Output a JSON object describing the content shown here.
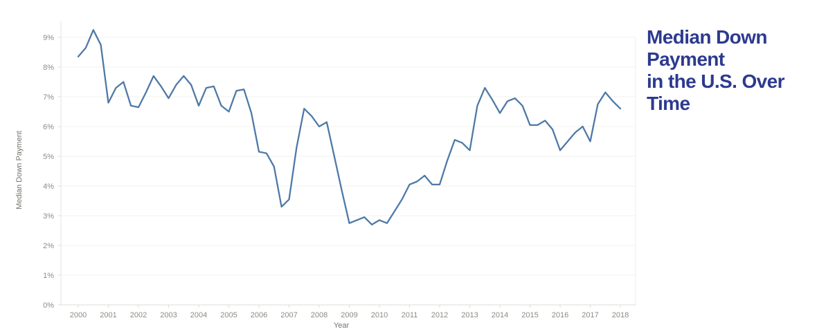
{
  "title": {
    "line1": "Median Down Payment",
    "line2": "in the U.S. Over Time"
  },
  "colors": {
    "line": "#4e79a7",
    "title_text": "#2d3a8f",
    "tick_text": "#8b8b84",
    "axis_title_text": "#73736c",
    "gridline": "#f0f0ee",
    "axis_line": "#dcdcda",
    "background": "#ffffff"
  },
  "chart_data": {
    "type": "line",
    "title": "Median Down Payment in the U.S. Over Time",
    "xlabel": "Year",
    "ylabel": "Median Down Payment",
    "legend": "none",
    "grid": "horizontal-light",
    "frequency": "quarterly",
    "xlim": [
      1999.42,
      2018.55
    ],
    "ylim": [
      0,
      9.4
    ],
    "x_tick_labels": [
      "2000",
      "2001",
      "2002",
      "2003",
      "2004",
      "2005",
      "2006",
      "2007",
      "2008",
      "2009",
      "2010",
      "2011",
      "2012",
      "2013",
      "2014",
      "2015",
      "2016",
      "2017",
      "2018"
    ],
    "y_tick_labels": [
      "0%",
      "1%",
      "2%",
      "3%",
      "4%",
      "5%",
      "6%",
      "7%",
      "8%",
      "9%"
    ],
    "y_tick_values": [
      0,
      1,
      2,
      3,
      4,
      5,
      6,
      7,
      8,
      9
    ],
    "series": [
      {
        "name": "Median Down Payment",
        "color": "#4e79a7",
        "x": [
          2000.0,
          2000.25,
          2000.5,
          2000.75,
          2001.0,
          2001.25,
          2001.5,
          2001.75,
          2002.0,
          2002.25,
          2002.5,
          2002.75,
          2003.0,
          2003.25,
          2003.5,
          2003.75,
          2004.0,
          2004.25,
          2004.5,
          2004.75,
          2005.0,
          2005.25,
          2005.5,
          2005.75,
          2006.0,
          2006.25,
          2006.5,
          2006.75,
          2007.0,
          2007.25,
          2007.5,
          2007.75,
          2008.0,
          2008.25,
          2008.5,
          2008.75,
          2009.0,
          2009.25,
          2009.5,
          2009.75,
          2010.0,
          2010.25,
          2010.5,
          2010.75,
          2011.0,
          2011.25,
          2011.5,
          2011.75,
          2012.0,
          2012.25,
          2012.5,
          2012.75,
          2013.0,
          2013.25,
          2013.5,
          2013.75,
          2014.0,
          2014.25,
          2014.5,
          2014.75,
          2015.0,
          2015.25,
          2015.5,
          2015.75,
          2016.0,
          2016.25,
          2016.5,
          2016.75,
          2017.0,
          2017.25,
          2017.5,
          2017.75,
          2018.0
        ],
        "y": [
          8.35,
          8.65,
          9.25,
          8.75,
          6.8,
          7.3,
          7.5,
          6.7,
          6.65,
          7.15,
          7.7,
          7.35,
          6.95,
          7.4,
          7.7,
          7.4,
          6.7,
          7.3,
          7.35,
          6.7,
          6.5,
          7.2,
          7.25,
          6.45,
          5.15,
          5.1,
          4.65,
          3.3,
          3.55,
          5.3,
          6.6,
          6.35,
          6.0,
          6.15,
          5.0,
          3.85,
          2.75,
          2.85,
          2.95,
          2.7,
          2.85,
          2.75,
          3.15,
          3.55,
          4.05,
          4.15,
          4.35,
          4.05,
          4.05,
          4.85,
          5.55,
          5.45,
          5.2,
          6.7,
          7.3,
          6.9,
          6.45,
          6.85,
          6.95,
          6.7,
          6.05,
          6.05,
          6.2,
          5.9,
          5.2,
          5.5,
          5.8,
          6.0,
          5.5,
          6.75,
          7.15,
          6.85,
          6.6
        ]
      }
    ]
  }
}
